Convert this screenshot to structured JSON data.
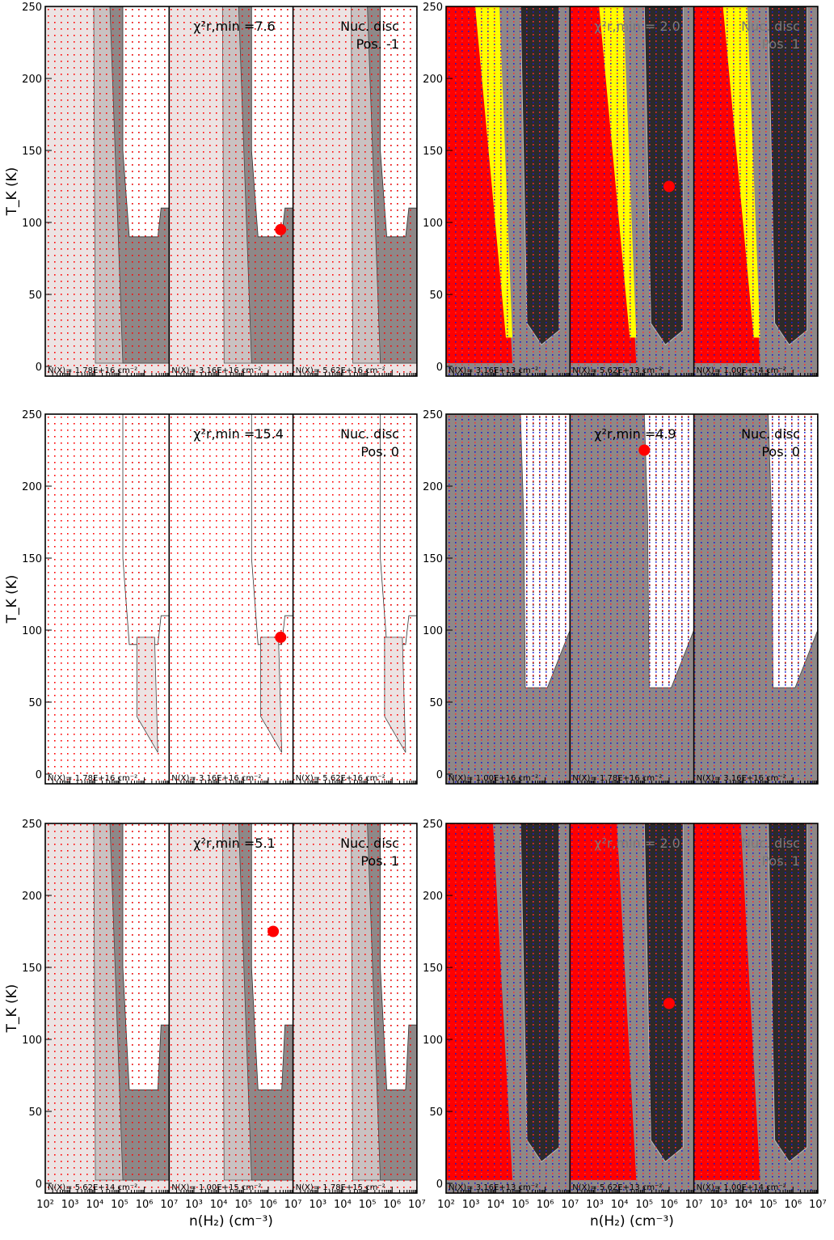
{
  "colors": {
    "chi_level_1": "#ece3e3",
    "chi_level_2": "#c9c2c2",
    "chi_level_3": "#8e8888",
    "chi_level_4": "#5c5858",
    "chi_level_5": "#2c2a2a",
    "excluded_red": "#ff0000",
    "excluded_yellow": "#ffff00",
    "best_fit_marker": "#ff0000",
    "grid_dots_left": "#ff0000",
    "grid_dots_right_red": "#ff3030",
    "grid_dots_right_blue": "#1818d0"
  },
  "chart_data": [
    {
      "type": "heatmap",
      "xlabel": "",
      "ylabel": "T_K (K)",
      "ylim": [
        0,
        250
      ],
      "xlim_log10": [
        2,
        7
      ],
      "chi2_min_label": "χ²r,min",
      "chi2_min_value": "=7.6",
      "annotation_lines": [
        "Nuc. disc",
        "Pos. -1"
      ],
      "subpanels": [
        {
          "ncol_label": "N(X)=",
          "ncol_value": "1.78E+16",
          "ncol_unit": "cm⁻²"
        },
        {
          "ncol_label": "N(X)=",
          "ncol_value": "3.16E+16",
          "ncol_unit": "cm⁻²",
          "best_fit": {
            "log_n": 6.5,
            "T": 95
          }
        },
        {
          "ncol_label": "N(X)=",
          "ncol_value": "5.62E+16",
          "ncol_unit": "cm⁻²"
        }
      ]
    },
    {
      "type": "heatmap",
      "xlabel": "",
      "ylabel": "",
      "ylim": [
        0,
        250
      ],
      "xlim_log10": [
        2,
        7
      ],
      "chi2_min_label": "χ²r,min",
      "chi2_min_value": "=  2.0",
      "annotation_lines": [
        "Nuc. disc",
        "Pos. 1"
      ],
      "subpanels": [
        {
          "ncol_label": "N(X)=",
          "ncol_value": "3.16E+13",
          "ncol_unit": "cm⁻²"
        },
        {
          "ncol_label": "N(X)=",
          "ncol_value": "5.62E+13",
          "ncol_unit": "cm⁻²",
          "best_fit": {
            "log_n": 6.0,
            "T": 125
          }
        },
        {
          "ncol_label": "N(X)=",
          "ncol_value": "1.00E+14",
          "ncol_unit": "cm⁻²"
        }
      ]
    },
    {
      "type": "heatmap",
      "xlabel": "",
      "ylabel": "T_K (K)",
      "ylim": [
        0,
        250
      ],
      "xlim_log10": [
        2,
        7
      ],
      "chi2_min_label": "χ²r,min",
      "chi2_min_value": "=15.4",
      "annotation_lines": [
        "Nuc. disc",
        "Pos. 0"
      ],
      "subpanels": [
        {
          "ncol_label": "N(X)=",
          "ncol_value": "1.78E+16",
          "ncol_unit": "cm⁻²"
        },
        {
          "ncol_label": "N(X)=",
          "ncol_value": "3.16E+16",
          "ncol_unit": "cm⁻²",
          "best_fit": {
            "log_n": 6.5,
            "T": 95
          }
        },
        {
          "ncol_label": "N(X)=",
          "ncol_value": "5.62E+16",
          "ncol_unit": "cm⁻²"
        }
      ]
    },
    {
      "type": "heatmap",
      "xlabel": "",
      "ylabel": "",
      "ylim": [
        0,
        250
      ],
      "xlim_log10": [
        2,
        7
      ],
      "chi2_min_label": "χ²r,min",
      "chi2_min_value": "=4.9",
      "annotation_lines": [
        "Nuc. disc",
        "Pos. 0"
      ],
      "subpanels": [
        {
          "ncol_label": "N(X)=",
          "ncol_value": "1.00E+16",
          "ncol_unit": "cm⁻²"
        },
        {
          "ncol_label": "N(X)=",
          "ncol_value": "1.78E+16",
          "ncol_unit": "cm⁻²",
          "best_fit": {
            "log_n": 5.0,
            "T": 225
          }
        },
        {
          "ncol_label": "N(X)=",
          "ncol_value": "3.16E+16",
          "ncol_unit": "cm⁻²"
        }
      ]
    },
    {
      "type": "heatmap",
      "xlabel": "n(H₂) (cm⁻³)",
      "ylabel": "T_K (K)",
      "ylim": [
        0,
        250
      ],
      "xlim_log10": [
        2,
        7
      ],
      "chi2_min_label": "χ²r,min",
      "chi2_min_value": "=5.1",
      "annotation_lines": [
        "Nuc. disc",
        "Pos. 1"
      ],
      "subpanels": [
        {
          "ncol_label": "N(X)=",
          "ncol_value": "5.62E+14",
          "ncol_unit": "cm⁻²"
        },
        {
          "ncol_label": "N(X)=",
          "ncol_value": "1.00E+15",
          "ncol_unit": "cm⁻²",
          "best_fit": {
            "log_n": 6.2,
            "T": 175
          }
        },
        {
          "ncol_label": "N(X)=",
          "ncol_value": "1.78E+15",
          "ncol_unit": "cm⁻²"
        }
      ]
    },
    {
      "type": "heatmap",
      "xlabel": "n(H₂) (cm⁻³)",
      "ylabel": "",
      "ylim": [
        0,
        250
      ],
      "xlim_log10": [
        2,
        7
      ],
      "chi2_min_label": "χ²r,min",
      "chi2_min_value": "=  2.0",
      "annotation_lines": [
        "Nuc. disc",
        "Pos. 1"
      ],
      "subpanels": [
        {
          "ncol_label": "N(X)=",
          "ncol_value": "3.16E+13",
          "ncol_unit": "cm⁻²"
        },
        {
          "ncol_label": "N(X)=",
          "ncol_value": "5.62E+13",
          "ncol_unit": "cm⁻²",
          "best_fit": {
            "log_n": 6.0,
            "T": 125
          }
        },
        {
          "ncol_label": "N(X)=",
          "ncol_value": "1.00E+14",
          "ncol_unit": "cm⁻²"
        }
      ]
    }
  ],
  "y_tick_labels": [
    "0",
    "50",
    "100",
    "150",
    "200",
    "250"
  ],
  "x_tick_labels": [
    "10²",
    "10³",
    "10⁴",
    "10⁵",
    "10⁶",
    "10⁷"
  ]
}
